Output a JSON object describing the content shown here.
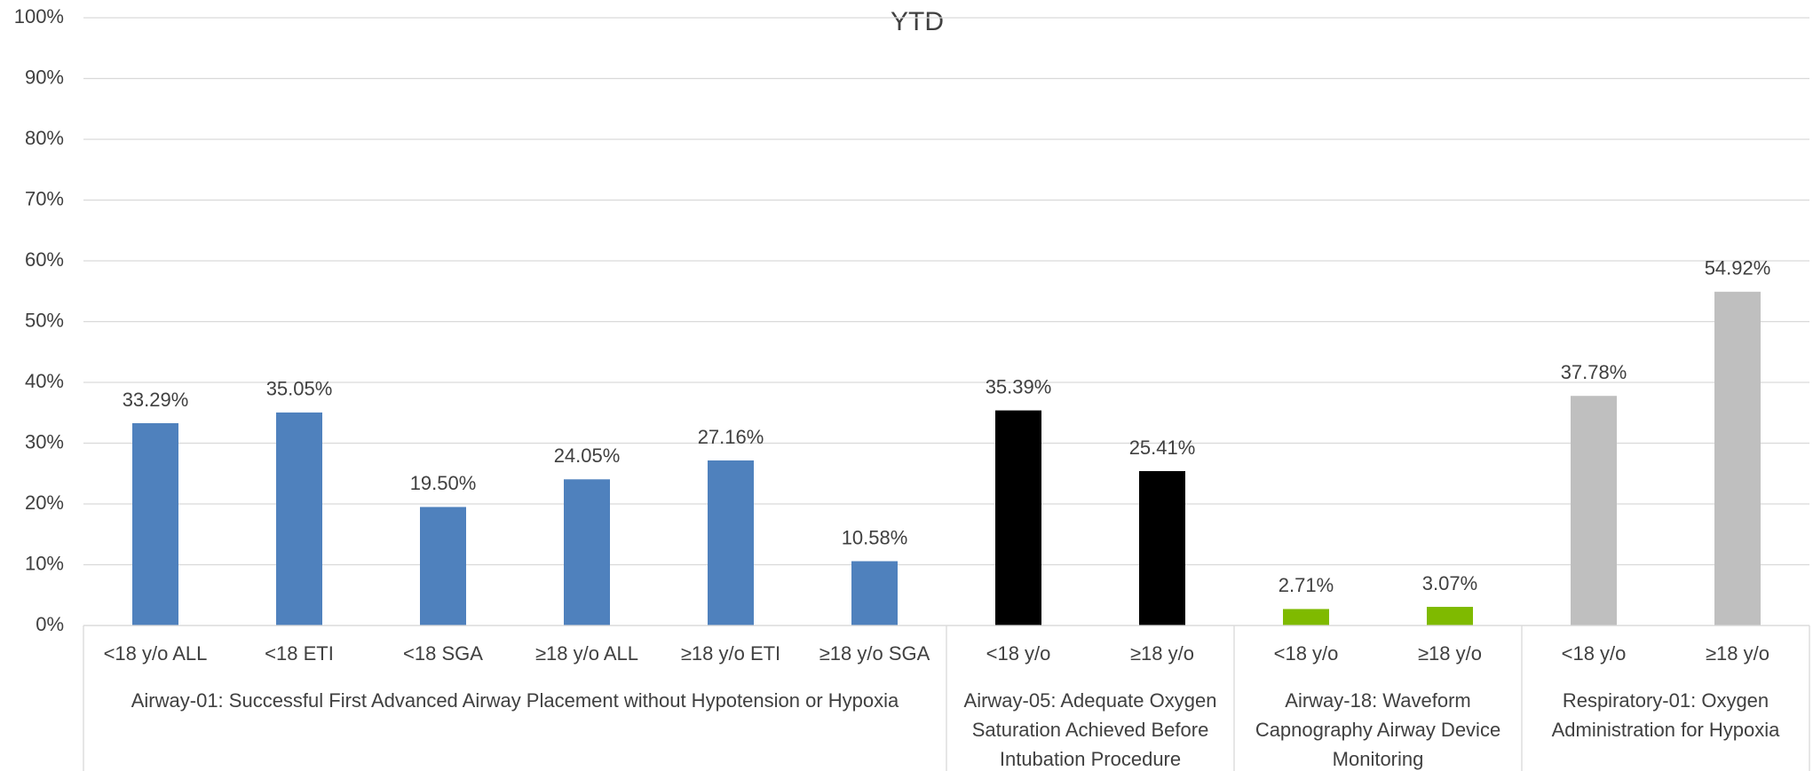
{
  "chart_data": {
    "type": "bar",
    "title": "YTD",
    "ylim": [
      0,
      100
    ],
    "yticks": [
      {
        "value": 0,
        "label": "0%"
      },
      {
        "value": 10,
        "label": "10%"
      },
      {
        "value": 20,
        "label": "20%"
      },
      {
        "value": 30,
        "label": "30%"
      },
      {
        "value": 40,
        "label": "40%"
      },
      {
        "value": 50,
        "label": "50%"
      },
      {
        "value": 60,
        "label": "60%"
      },
      {
        "value": 70,
        "label": "70%"
      },
      {
        "value": 80,
        "label": "80%"
      },
      {
        "value": 90,
        "label": "90%"
      },
      {
        "value": 100,
        "label": "100%"
      }
    ],
    "grid": true,
    "groups": [
      {
        "name": "Airway-01: Successful First Advanced Airway Placement without Hypotension or Hypoxia",
        "color": "#4f81bd",
        "categories": [
          "<18 y/o ALL",
          "<18 ETI",
          "<18 SGA",
          "≥18 y/o ALL",
          "≥18 y/o ETI",
          "≥18 y/o SGA"
        ],
        "values": [
          33.29,
          35.05,
          19.5,
          24.05,
          27.16,
          10.58
        ],
        "value_labels": [
          "33.29%",
          "35.05%",
          "19.50%",
          "24.05%",
          "27.16%",
          "10.58%"
        ]
      },
      {
        "name": "Airway-05: Adequate Oxygen Saturation Achieved Before Intubation Procedure",
        "color": "#000000",
        "categories": [
          "<18 y/o",
          "≥18 y/o"
        ],
        "values": [
          35.39,
          25.41
        ],
        "value_labels": [
          "35.39%",
          "25.41%"
        ]
      },
      {
        "name": "Airway-18: Waveform Capnography Airway Device Monitoring",
        "color": "#7fba00",
        "categories": [
          "<18 y/o",
          "≥18 y/o"
        ],
        "values": [
          2.71,
          3.07
        ],
        "value_labels": [
          "2.71%",
          "3.07%"
        ]
      },
      {
        "name": "Respiratory-01: Oxygen Administration for Hypoxia",
        "color": "#bfbfbf",
        "categories": [
          "<18 y/o",
          "≥18 y/o"
        ],
        "values": [
          37.78,
          54.92
        ],
        "value_labels": [
          "37.78%",
          "54.92%"
        ]
      }
    ]
  }
}
